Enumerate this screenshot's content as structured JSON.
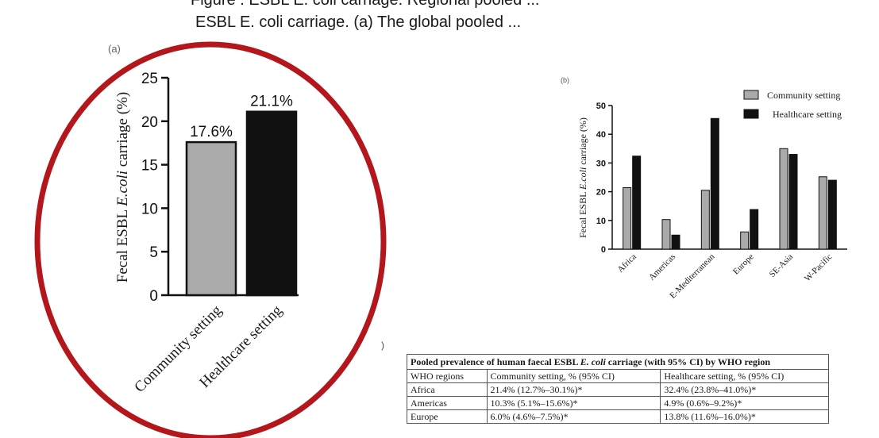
{
  "caption": {
    "line1": "Figure . ESBL E. coli carriage. Regional pooled ...",
    "line2": "ESBL E. coli carriage. (a) The global pooled ..."
  },
  "colors": {
    "community": "#aaaaaa",
    "healthcare": "#111111",
    "highlight_ellipse": "#b3171b"
  },
  "chart_data": [
    {
      "panel": "(a)",
      "type": "bar",
      "categories": [
        "Community setting",
        "Healthcare setting"
      ],
      "values": [
        17.6,
        21.1
      ],
      "value_labels": [
        "17.6%",
        "21.1%"
      ],
      "ylabel_prefix": "Fecal ESBL ",
      "ylabel_italic": "E.coli",
      "ylabel_suffix": " carriage (%)",
      "yticks": [
        "0",
        "5",
        "10",
        "15",
        "20",
        "25"
      ],
      "ylim": [
        0,
        25
      ]
    },
    {
      "panel": "(b)",
      "type": "bar",
      "categories": [
        "Africa",
        "Americas",
        "E-Mediterranean",
        "Europe",
        "SE-Asia",
        "W-Pacific"
      ],
      "series": [
        {
          "name": "Community setting",
          "values": [
            21.4,
            10.3,
            20.5,
            6.0,
            35.0,
            25.2
          ]
        },
        {
          "name": "Healthcare setting",
          "values": [
            32.4,
            4.9,
            45.5,
            13.8,
            33.0,
            24.0
          ]
        }
      ],
      "ylabel_prefix": "Fecal ESBL ",
      "ylabel_italic": "E.coli",
      "ylabel_suffix": " carriage (%)",
      "yticks": [
        "0",
        "10",
        "20",
        "30",
        "40",
        "50"
      ],
      "ylim": [
        0,
        50
      ],
      "legend": "top-right"
    }
  ],
  "table": {
    "paren": ")",
    "title_prefix": "Pooled prevalence of human faecal ESBL ",
    "title_italic": "E. coli",
    "title_suffix": " carriage (with 95% CI) by WHO region",
    "headers": [
      "WHO regions",
      "Community setting, % (95% CI)",
      "Healthcare setting, % (95% CI)"
    ],
    "rows": [
      [
        "Africa",
        "21.4% (12.7%–30.1%)*",
        "32.4% (23.8%–41.0%)*"
      ],
      [
        "Americas",
        "10.3% (5.1%–15.6%)*",
        "4.9% (0.6%–9.2%)*"
      ],
      [
        "Europe",
        "6.0% (4.6%–7.5%)*",
        "13.8% (11.6%–16.0%)*"
      ]
    ]
  }
}
